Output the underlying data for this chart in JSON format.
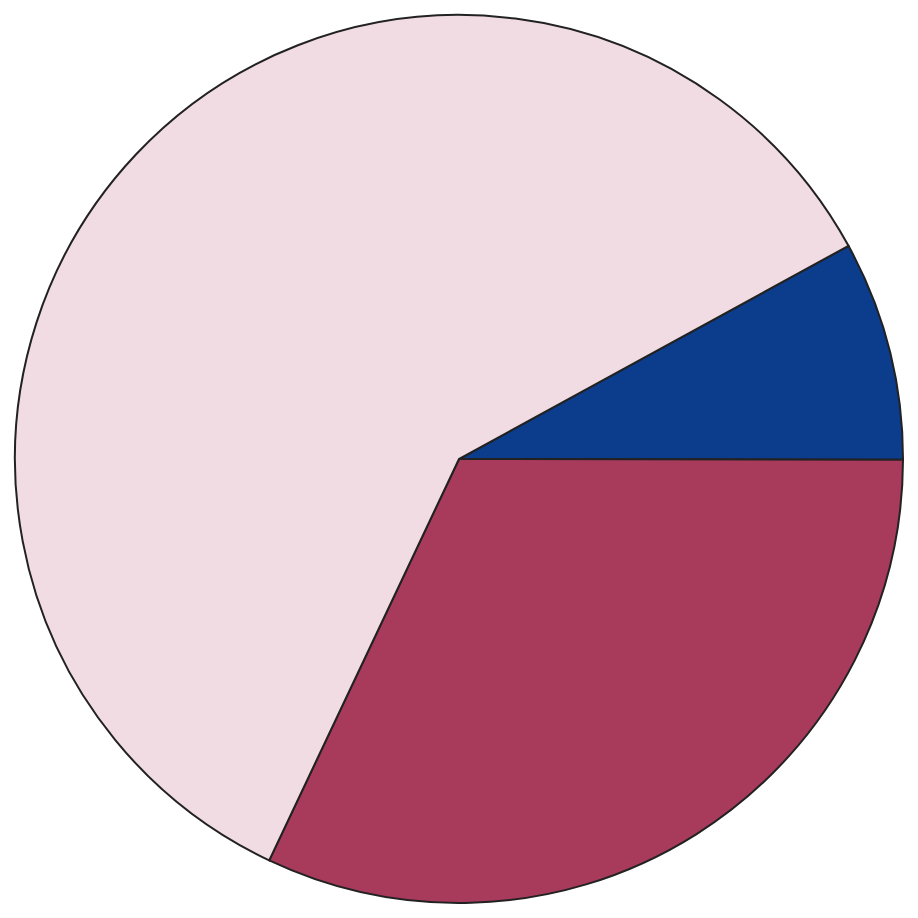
{
  "chart_data": {
    "type": "pie",
    "categories": [
      null,
      null,
      null
    ],
    "values": [
      8,
      32,
      60
    ],
    "colors": [
      "#0c3c8c",
      "#a83a5c",
      "#f2dce4"
    ],
    "legend": false
  }
}
